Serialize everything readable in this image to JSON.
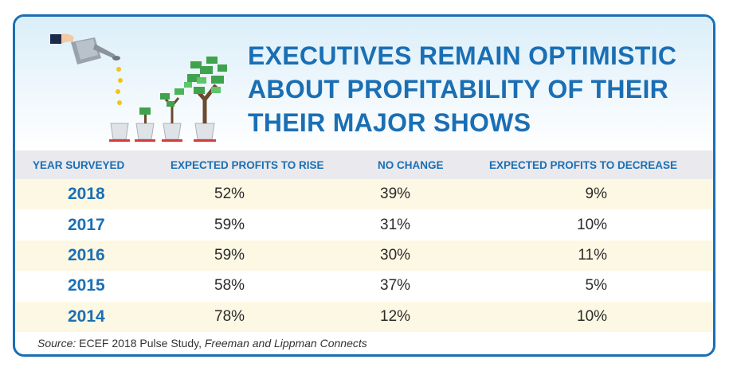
{
  "title_lines": [
    "EXECUTIVES REMAIN OPTIMISTIC",
    "ABOUT PROFITABILITY OF THEIR",
    "THEIR MAJOR SHOWS"
  ],
  "colors": {
    "accent": "#1a6fb4",
    "header_row": "#e9e9ee",
    "alt_row": "#fdf8e4"
  },
  "source": {
    "prefix": "Source:",
    "study": "ECEF 2018 Pulse Study,",
    "org": "Freeman and Lippman Connects"
  },
  "chart_data": {
    "type": "table",
    "title": "EXECUTIVES REMAIN OPTIMISTIC ABOUT PROFITABILITY OF THEIR THEIR MAJOR SHOWS",
    "columns": [
      "YEAR SURVEYED",
      "EXPECTED PROFITS TO RISE",
      "NO CHANGE",
      "EXPECTED PROFITS TO DECREASE"
    ],
    "rows": [
      [
        "2018",
        "52%",
        "39%",
        "9%"
      ],
      [
        "2017",
        "59%",
        "31%",
        "10%"
      ],
      [
        "2016",
        "59%",
        "30%",
        "11%"
      ],
      [
        "2015",
        "58%",
        "37%",
        "5%"
      ],
      [
        "2014",
        "78%",
        "12%",
        "10%"
      ]
    ]
  }
}
